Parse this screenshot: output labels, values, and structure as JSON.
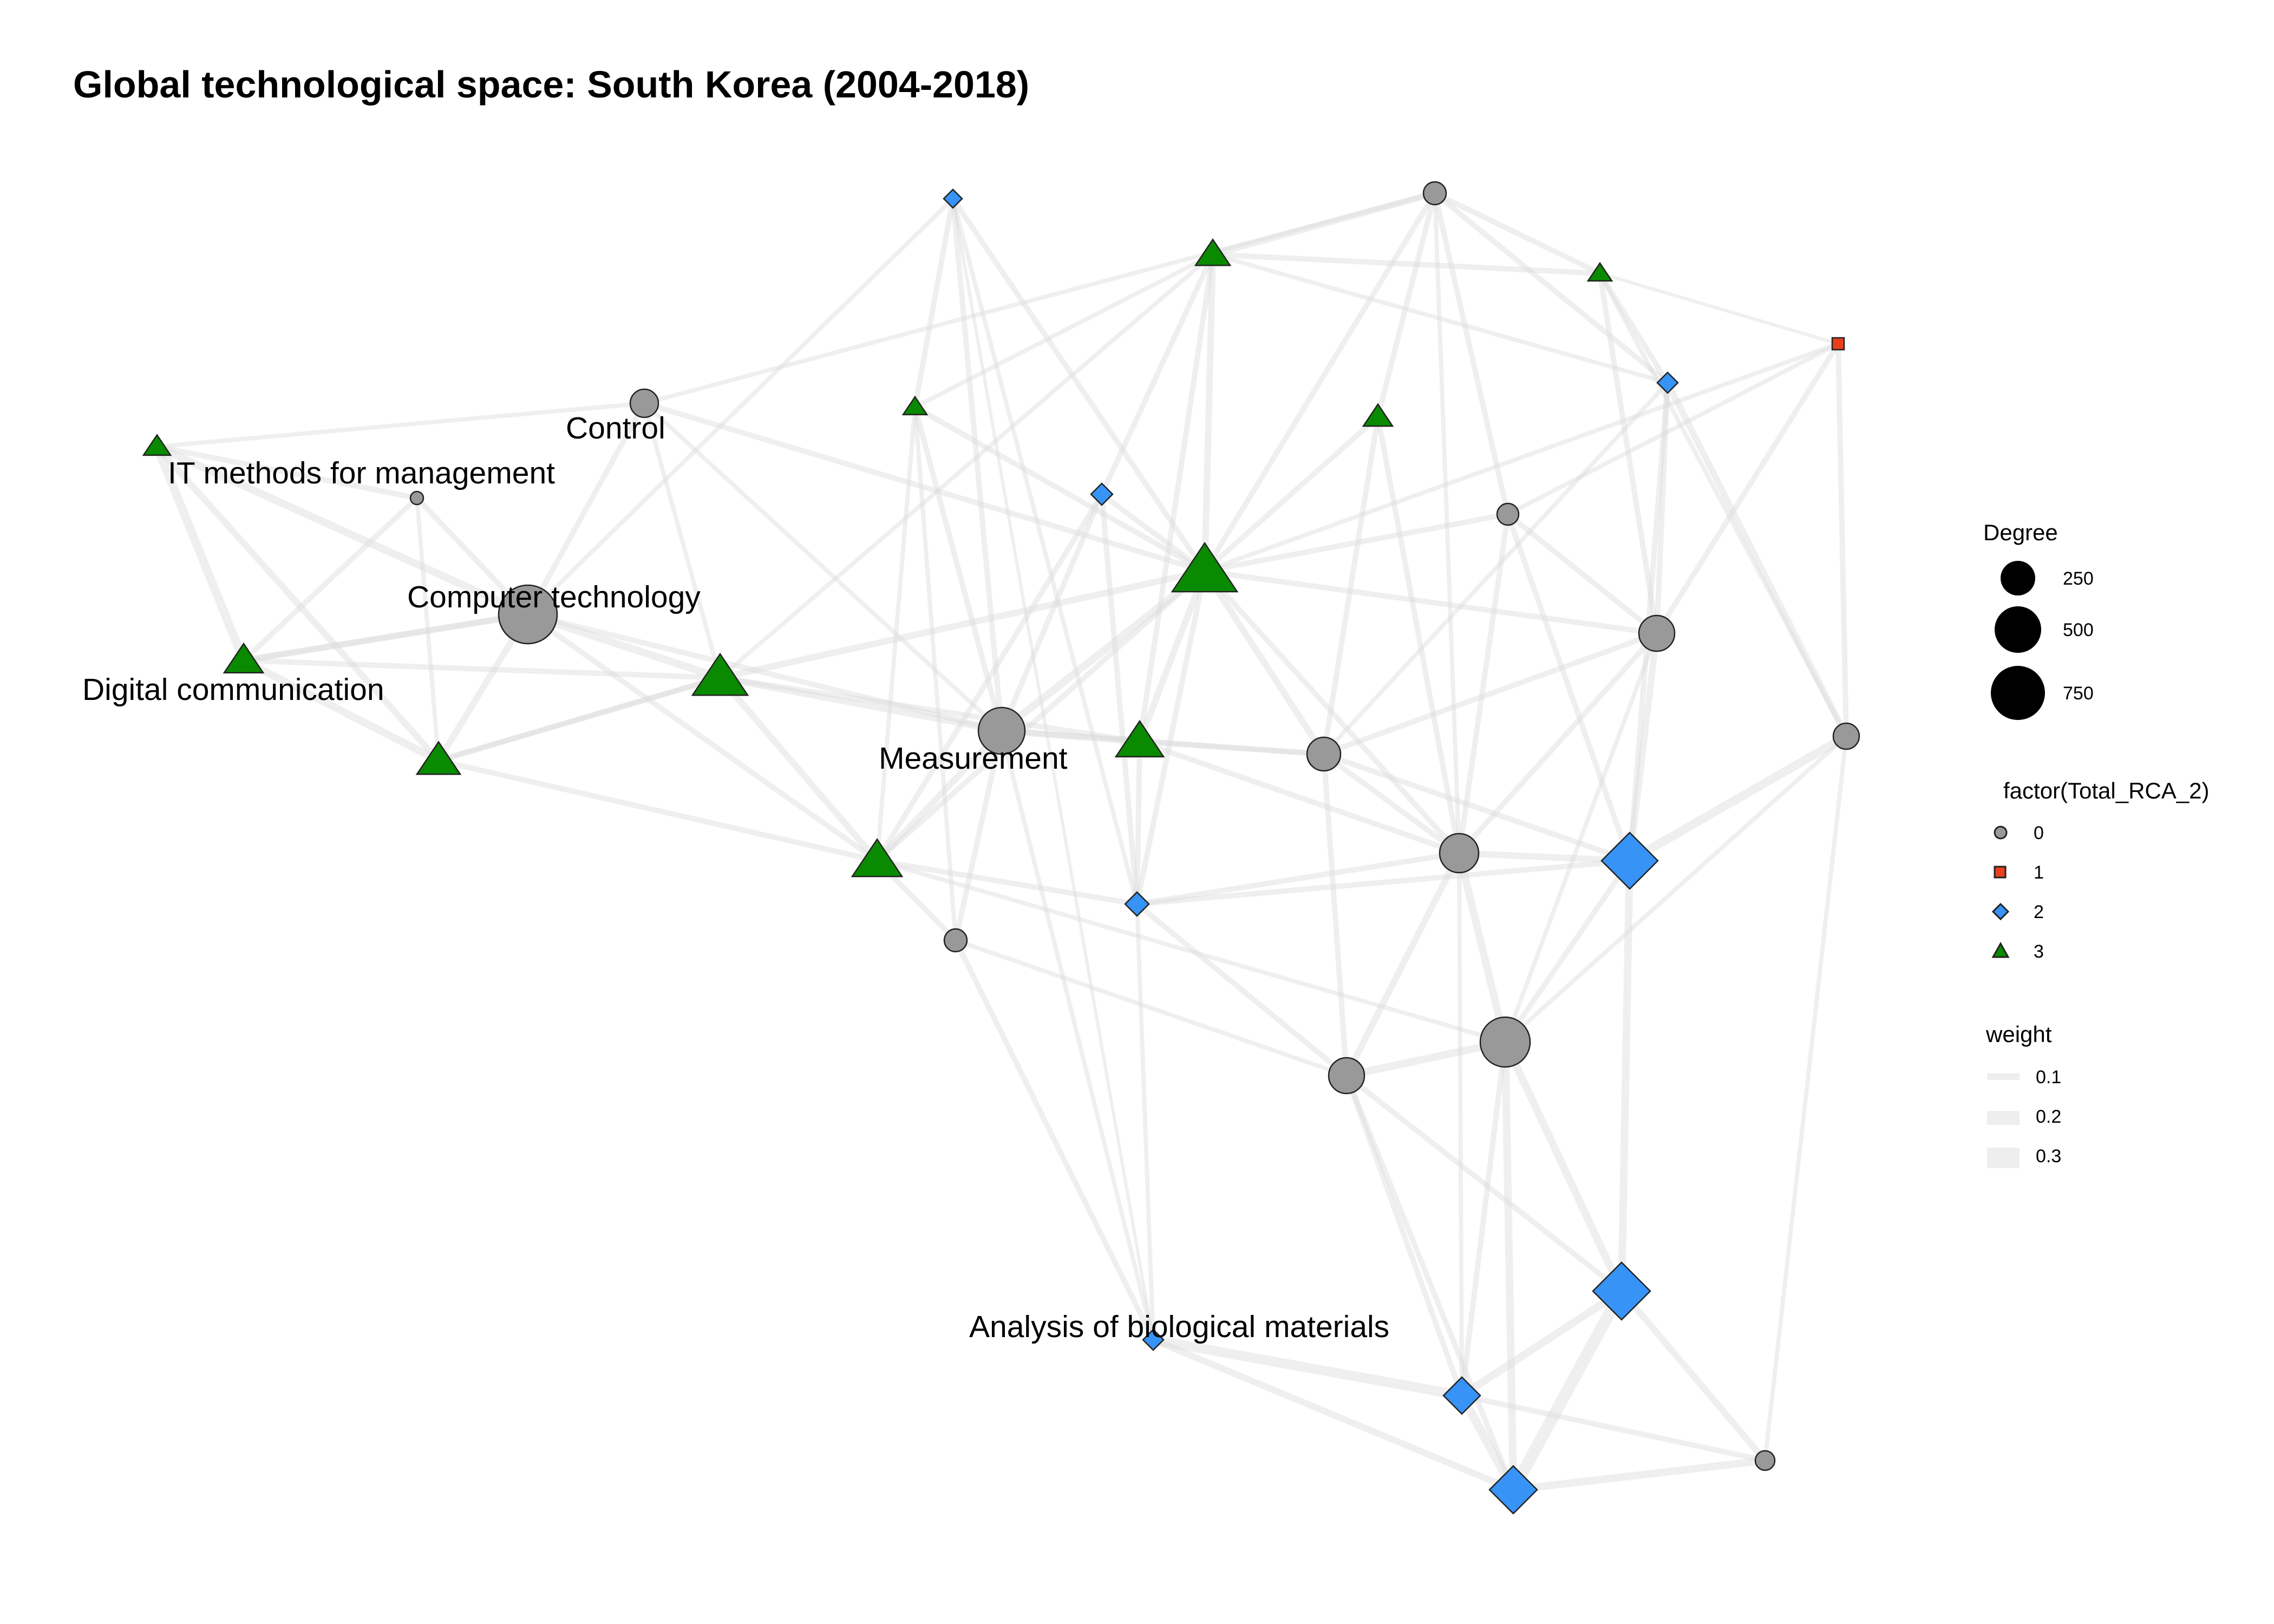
{
  "title": "Global technological space: South Korea (2004-2018)",
  "node_labels": [
    "Control",
    "IT methods for management",
    "Computer technology",
    "Digital communication",
    "Measurement",
    "Analysis of biological materials"
  ],
  "legend": {
    "degree": {
      "title": "Degree",
      "items": [
        "250",
        "500",
        "750"
      ]
    },
    "rca": {
      "title": "factor(Total_RCA_2)",
      "items": [
        {
          "label": "0",
          "shape": "circle",
          "color": "#999999"
        },
        {
          "label": "1",
          "shape": "square",
          "color": "#e8401c"
        },
        {
          "label": "2",
          "shape": "diamond",
          "color": "#3793f5"
        },
        {
          "label": "3",
          "shape": "triangle",
          "color": "#0a8a00"
        }
      ]
    },
    "weight": {
      "title": "weight",
      "items": [
        "0.1",
        "0.2",
        "0.3"
      ]
    }
  },
  "colors": {
    "rca_0": "#999999",
    "rca_1": "#e8401c",
    "rca_2": "#3793f5",
    "rca_3": "#0a8a00",
    "edge": "#dcdcdc",
    "node_outline": "#222222"
  }
}
